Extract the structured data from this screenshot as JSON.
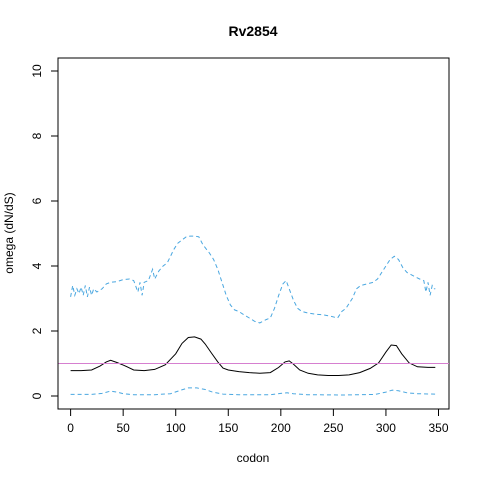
{
  "chart_data": {
    "type": "line",
    "title": "Rv2854",
    "xlabel": "codon",
    "ylabel": "omega (dN/dS)",
    "xlim": [
      -12,
      360
    ],
    "ylim": [
      -0.4,
      10.4
    ],
    "x_ticks": [
      0,
      50,
      100,
      150,
      200,
      250,
      300,
      350
    ],
    "y_ticks": [
      0,
      2,
      4,
      6,
      8,
      10
    ],
    "grid": false,
    "legend": "none",
    "reference_line": {
      "y": 1,
      "color": "#d67fd0"
    },
    "series": [
      {
        "style": "solid",
        "color": "#000000",
        "points": [
          [
            0,
            0.78
          ],
          [
            10,
            0.78
          ],
          [
            20,
            0.8
          ],
          [
            28,
            0.92
          ],
          [
            34,
            1.05
          ],
          [
            38,
            1.1
          ],
          [
            44,
            1.03
          ],
          [
            50,
            0.95
          ],
          [
            55,
            0.88
          ],
          [
            60,
            0.8
          ],
          [
            70,
            0.78
          ],
          [
            80,
            0.82
          ],
          [
            90,
            0.96
          ],
          [
            100,
            1.3
          ],
          [
            106,
            1.62
          ],
          [
            112,
            1.8
          ],
          [
            118,
            1.82
          ],
          [
            124,
            1.75
          ],
          [
            128,
            1.6
          ],
          [
            134,
            1.32
          ],
          [
            140,
            1.05
          ],
          [
            145,
            0.86
          ],
          [
            150,
            0.8
          ],
          [
            160,
            0.75
          ],
          [
            170,
            0.72
          ],
          [
            180,
            0.7
          ],
          [
            190,
            0.72
          ],
          [
            198,
            0.88
          ],
          [
            204,
            1.05
          ],
          [
            208,
            1.08
          ],
          [
            212,
            0.98
          ],
          [
            218,
            0.8
          ],
          [
            226,
            0.7
          ],
          [
            235,
            0.65
          ],
          [
            245,
            0.63
          ],
          [
            255,
            0.63
          ],
          [
            265,
            0.65
          ],
          [
            275,
            0.72
          ],
          [
            285,
            0.85
          ],
          [
            293,
            1.02
          ],
          [
            300,
            1.35
          ],
          [
            305,
            1.57
          ],
          [
            310,
            1.55
          ],
          [
            315,
            1.3
          ],
          [
            322,
            1.02
          ],
          [
            330,
            0.9
          ],
          [
            340,
            0.88
          ],
          [
            347,
            0.88
          ]
        ]
      },
      {
        "style": "dashed",
        "color": "#4aa7e0",
        "points": [
          [
            0,
            3.05
          ],
          [
            2,
            3.4
          ],
          [
            4,
            3.1
          ],
          [
            6,
            3.3
          ],
          [
            8,
            3.15
          ],
          [
            10,
            3.35
          ],
          [
            12,
            3.1
          ],
          [
            14,
            3.4
          ],
          [
            16,
            3.05
          ],
          [
            18,
            3.35
          ],
          [
            20,
            3.1
          ],
          [
            22,
            3.3
          ],
          [
            25,
            3.2
          ],
          [
            30,
            3.3
          ],
          [
            34,
            3.45
          ],
          [
            38,
            3.5
          ],
          [
            44,
            3.52
          ],
          [
            50,
            3.58
          ],
          [
            56,
            3.6
          ],
          [
            60,
            3.55
          ],
          [
            64,
            3.2
          ],
          [
            66,
            3.5
          ],
          [
            68,
            3.1
          ],
          [
            70,
            3.5
          ],
          [
            74,
            3.55
          ],
          [
            78,
            3.9
          ],
          [
            80,
            3.6
          ],
          [
            84,
            3.85
          ],
          [
            88,
            4.0
          ],
          [
            92,
            4.1
          ],
          [
            95,
            4.3
          ],
          [
            98,
            4.5
          ],
          [
            102,
            4.7
          ],
          [
            106,
            4.8
          ],
          [
            110,
            4.9
          ],
          [
            114,
            4.92
          ],
          [
            118,
            4.92
          ],
          [
            122,
            4.9
          ],
          [
            126,
            4.65
          ],
          [
            132,
            4.4
          ],
          [
            136,
            4.2
          ],
          [
            140,
            3.9
          ],
          [
            144,
            3.5
          ],
          [
            148,
            3.1
          ],
          [
            152,
            2.8
          ],
          [
            156,
            2.65
          ],
          [
            160,
            2.6
          ],
          [
            165,
            2.5
          ],
          [
            170,
            2.4
          ],
          [
            175,
            2.3
          ],
          [
            180,
            2.25
          ],
          [
            186,
            2.35
          ],
          [
            190,
            2.4
          ],
          [
            194,
            2.7
          ],
          [
            198,
            3.1
          ],
          [
            202,
            3.45
          ],
          [
            205,
            3.55
          ],
          [
            208,
            3.3
          ],
          [
            212,
            2.95
          ],
          [
            216,
            2.7
          ],
          [
            220,
            2.6
          ],
          [
            226,
            2.55
          ],
          [
            232,
            2.52
          ],
          [
            240,
            2.5
          ],
          [
            248,
            2.45
          ],
          [
            254,
            2.4
          ],
          [
            258,
            2.6
          ],
          [
            262,
            2.7
          ],
          [
            268,
            3.0
          ],
          [
            272,
            3.3
          ],
          [
            276,
            3.4
          ],
          [
            282,
            3.45
          ],
          [
            288,
            3.5
          ],
          [
            292,
            3.6
          ],
          [
            296,
            3.8
          ],
          [
            300,
            4.0
          ],
          [
            304,
            4.2
          ],
          [
            308,
            4.3
          ],
          [
            312,
            4.2
          ],
          [
            316,
            3.95
          ],
          [
            320,
            3.8
          ],
          [
            326,
            3.7
          ],
          [
            332,
            3.6
          ],
          [
            336,
            3.55
          ],
          [
            338,
            3.2
          ],
          [
            340,
            3.5
          ],
          [
            342,
            3.1
          ],
          [
            344,
            3.4
          ],
          [
            346,
            3.3
          ],
          [
            347,
            3.3
          ]
        ]
      },
      {
        "style": "dashed",
        "color": "#4aa7e0",
        "points": [
          [
            0,
            0.05
          ],
          [
            20,
            0.05
          ],
          [
            30,
            0.08
          ],
          [
            38,
            0.15
          ],
          [
            44,
            0.12
          ],
          [
            50,
            0.07
          ],
          [
            60,
            0.04
          ],
          [
            80,
            0.04
          ],
          [
            95,
            0.07
          ],
          [
            105,
            0.18
          ],
          [
            112,
            0.25
          ],
          [
            120,
            0.25
          ],
          [
            128,
            0.2
          ],
          [
            135,
            0.12
          ],
          [
            145,
            0.06
          ],
          [
            160,
            0.04
          ],
          [
            190,
            0.04
          ],
          [
            200,
            0.08
          ],
          [
            206,
            0.1
          ],
          [
            212,
            0.07
          ],
          [
            225,
            0.04
          ],
          [
            260,
            0.03
          ],
          [
            290,
            0.05
          ],
          [
            300,
            0.12
          ],
          [
            306,
            0.18
          ],
          [
            312,
            0.16
          ],
          [
            320,
            0.1
          ],
          [
            330,
            0.07
          ],
          [
            347,
            0.06
          ]
        ]
      }
    ]
  }
}
